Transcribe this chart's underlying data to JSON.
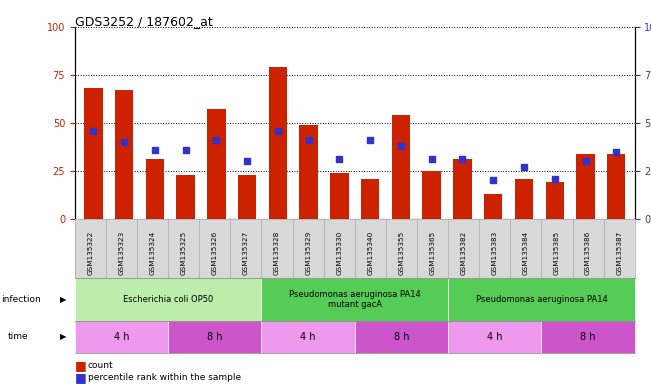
{
  "title": "GDS3252 / 187602_at",
  "samples": [
    "GSM135322",
    "GSM135323",
    "GSM135324",
    "GSM135325",
    "GSM135326",
    "GSM135327",
    "GSM135328",
    "GSM135329",
    "GSM135330",
    "GSM135340",
    "GSM135355",
    "GSM135365",
    "GSM135382",
    "GSM135383",
    "GSM135384",
    "GSM135385",
    "GSM135386",
    "GSM135387"
  ],
  "bar_heights": [
    68,
    67,
    31,
    23,
    57,
    23,
    79,
    49,
    24,
    21,
    54,
    25,
    31,
    13,
    21,
    19,
    34,
    34
  ],
  "blue_values": [
    46,
    40,
    36,
    36,
    41,
    30,
    46,
    41,
    31,
    41,
    38,
    31,
    31,
    20,
    27,
    21,
    30,
    35
  ],
  "bar_color": "#cc2200",
  "blue_color": "#3333cc",
  "ylim": [
    0,
    100
  ],
  "y_ticks": [
    0,
    25,
    50,
    75,
    100
  ],
  "infection_groups": [
    {
      "label": "Escherichia coli OP50",
      "start": 0,
      "end": 6,
      "color": "#bbeeaa"
    },
    {
      "label": "Pseudomonas aeruginosa PA14\nmutant gacA",
      "start": 6,
      "end": 12,
      "color": "#55cc55"
    },
    {
      "label": "Pseudomonas aeruginosa PA14",
      "start": 12,
      "end": 18,
      "color": "#55cc55"
    }
  ],
  "time_groups": [
    {
      "label": "4 h",
      "start": 0,
      "end": 3,
      "color": "#ee99ee"
    },
    {
      "label": "8 h",
      "start": 3,
      "end": 6,
      "color": "#cc55cc"
    },
    {
      "label": "4 h",
      "start": 6,
      "end": 9,
      "color": "#ee99ee"
    },
    {
      "label": "8 h",
      "start": 9,
      "end": 12,
      "color": "#cc55cc"
    },
    {
      "label": "4 h",
      "start": 12,
      "end": 15,
      "color": "#ee99ee"
    },
    {
      "label": "8 h",
      "start": 15,
      "end": 18,
      "color": "#cc55cc"
    }
  ],
  "left_axis_color": "#cc2200",
  "right_axis_color": "#3333cc",
  "sample_bg": "#d8d8d8",
  "sample_line": "#aaaaaa"
}
